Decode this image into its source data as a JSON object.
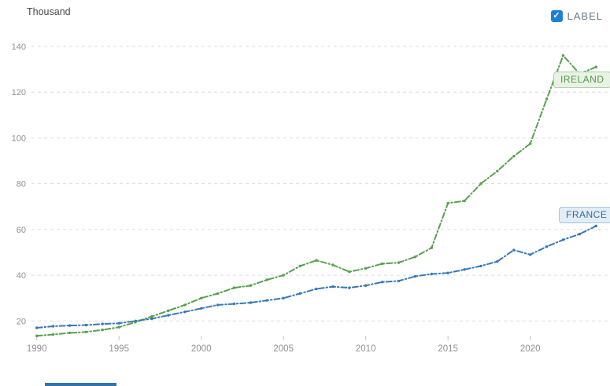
{
  "header": {
    "unit_label": "Thousand",
    "legend_checkbox_label": "LABEL",
    "legend_checkbox_checked": true,
    "check_glyph": "✓"
  },
  "chart_data": {
    "type": "line",
    "title": "",
    "ylabel": "Thousand",
    "xlabel": "",
    "grid": "horizontal dashed gridlines",
    "legend_position": "inline labels on lines (right side)",
    "x_range": [
      1990,
      2024
    ],
    "ylim": [
      20,
      140
    ],
    "x_ticks": [
      1990,
      1995,
      2000,
      2005,
      2010,
      2015,
      2020
    ],
    "y_ticks": [
      20,
      40,
      60,
      80,
      100,
      120,
      140
    ],
    "years": [
      1990,
      1991,
      1992,
      1993,
      1994,
      1995,
      1996,
      1997,
      1998,
      1999,
      2000,
      2001,
      2002,
      2003,
      2004,
      2005,
      2006,
      2007,
      2008,
      2009,
      2010,
      2011,
      2012,
      2013,
      2014,
      2015,
      2016,
      2017,
      2018,
      2019,
      2020,
      2021,
      2022,
      2023,
      2024
    ],
    "series": [
      {
        "name": "IRELAND",
        "color": "#57a04d",
        "badge": {
          "bg": "#e9f3e5",
          "border": "#aecfa4",
          "text_color": "#4f9a46"
        },
        "values": [
          13.5,
          14.1,
          14.8,
          15.2,
          16.1,
          17.3,
          19.5,
          22,
          24.5,
          27,
          30,
          32,
          34.5,
          35.5,
          38,
          40,
          44,
          46.5,
          44.5,
          41.5,
          43,
          45,
          45.5,
          48,
          52,
          71.5,
          72.5,
          80,
          85.5,
          92,
          97.5,
          117,
          136,
          128,
          131
        ]
      },
      {
        "name": "FRANCE",
        "color": "#3878b5",
        "badge": {
          "bg": "#e3edf7",
          "border": "#a3c3dc",
          "text_color": "#2f6f9e"
        },
        "values": [
          17,
          17.7,
          18,
          18.2,
          18.7,
          19,
          20,
          21,
          22.5,
          24,
          25.5,
          27,
          27.5,
          28,
          29,
          30,
          32,
          34,
          35,
          34.5,
          35.5,
          37,
          37.5,
          39.5,
          40.5,
          41,
          42.5,
          44,
          46,
          51,
          49,
          52.5,
          55.5,
          58,
          61.5
        ]
      }
    ]
  },
  "colors": {
    "gridline": "#dcdcdc",
    "axis_tick_mark": "#c8c8c8",
    "axis_tick_text": "#909090",
    "checkbox_blue": "#1e80d2",
    "legend_text": "#6b7b88",
    "partial_bottom_bar": "#3273a8"
  }
}
